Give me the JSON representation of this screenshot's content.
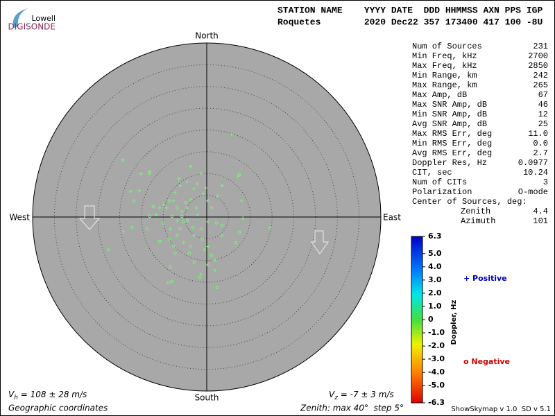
{
  "header": {
    "line1": "STATION NAME    YYYY DATE  DDD HHMMSS AXN PPS IGP",
    "line2": "Roquetes        2020 Dec22 357 173400 417 100 -8U"
  },
  "logo": {
    "top": "Lowell",
    "bottom": "DIGISONDE"
  },
  "stats": {
    "rows": [
      [
        "Num of Sources",
        "231"
      ],
      [
        "Min Freq, kHz",
        "2700"
      ],
      [
        "Max Freq, kHz",
        "2850"
      ],
      [
        "Min Range, km",
        "242"
      ],
      [
        "Max Range, km",
        "265"
      ],
      [
        "Max Amp, dB",
        "67"
      ],
      [
        "Max SNR Amp, dB",
        "46"
      ],
      [
        "Min SNR Amp, dB",
        "12"
      ],
      [
        "Avg SNR Amp, dB",
        "25"
      ],
      [
        "Max RMS Err, deg",
        "11.0"
      ],
      [
        "Min RMS Err, deg",
        "0.0"
      ],
      [
        "Avg RMS Err, deg",
        "2.7"
      ],
      [
        "Doppler Res, Hz",
        "0.0977"
      ],
      [
        "CIT, sec",
        "10.24"
      ],
      [
        "Num of CITs",
        "3"
      ],
      [
        "Polarization",
        "O-mode"
      ]
    ],
    "center_title": "Center of Sources, deg:",
    "center_rows": [
      [
        "Zenith",
        "4.4"
      ],
      [
        "Azimuth",
        "101"
      ]
    ]
  },
  "footer": {
    "vh": {
      "symbol": "V",
      "sub": "h",
      "text": " = 108 ± 28 m/s"
    },
    "vz": {
      "symbol": "V",
      "sub": "z",
      "text": " = -7 ± 3 m/s"
    },
    "coords": "Geographic coordinates",
    "zenith": "Zenith: max 40°  step 5°",
    "version": "ShowSkymap v 1.0  SD v 5.1"
  },
  "chart_data": {
    "type": "skymap",
    "directions": {
      "north": "North",
      "south": "South",
      "west": "West",
      "east": "East"
    },
    "xlim": [
      -40,
      40
    ],
    "ylim": [
      -40,
      40
    ],
    "zenith_step": 5,
    "series": [
      {
        "name": "+ Positive",
        "marker": "plus",
        "color": "#7cf27c",
        "legend_color": "#0000c0",
        "x": [
          5.7,
          -19.3,
          -13.1,
          -15.1,
          -3.7,
          -1.3,
          -17.5,
          -15.4,
          -6.1,
          -4.5,
          -2.2,
          -0.3,
          3.5,
          7.2,
          8.0,
          -0.8,
          -3.7,
          -7.6,
          -9.2,
          -5.7,
          1.1,
          2.5,
          -6.8,
          -9.9,
          -19.1,
          -22.6,
          14.5,
          0.3,
          1.9,
          -1.3,
          -2.9,
          -5.3,
          3.5,
          8.3,
          -8.4,
          -11.6,
          0.3,
          -2.1,
          -4.5,
          -7.3,
          -10.8,
          1.9,
          -0.5,
          -6.4,
          -2.9
        ],
        "values": [
          18.9,
          13.1,
          10.4,
          9.9,
          11.6,
          10.0,
          5.9,
          6.1,
          7.2,
          8.1,
          7.6,
          6.7,
          7.2,
          9.4,
          3.7,
          5.3,
          4.0,
          3.7,
          2.1,
          1.3,
          2.1,
          4.8,
          -0.8,
          2.9,
          -3.3,
          -7.5,
          -2.5,
          -6.8,
          -9.9,
          -13.1,
          -4.3,
          -5.9,
          -4.3,
          -0.3,
          -2.7,
          0.5,
          -1.1,
          0.5,
          2.1,
          5.6,
          2.1,
          -12.3,
          -7.5,
          8.8,
          6.5
        ]
      },
      {
        "name": "o Negative",
        "marker": "circle",
        "color": "#7cf27c",
        "legend_color": "#d00000",
        "x": [
          -13.2,
          -16.7,
          -17.2,
          -13.7,
          -13.1,
          -10.0,
          -8.6,
          -10.8,
          -7.6,
          -8.4,
          -8.8,
          -8.0,
          -4.0,
          -2.9,
          -1.6,
          2.4,
          3.5,
          6.7,
          7.5,
          -5.7,
          -4.5,
          -6.8,
          -6.1,
          -3.2,
          -2.4,
          -8.6,
          0.3,
          2.2,
          -1.0,
          -3.7,
          7.5,
          -12.3,
          -6.8,
          -5.3,
          -1.3,
          -8.0,
          -4.8,
          1.1,
          -7.3,
          0.3
        ],
        "values": [
          10.0,
          3.7,
          -2.4,
          -2.7,
          0.2,
          -1.4,
          -5.1,
          -5.6,
          -6.7,
          -11.5,
          -15.1,
          -14.8,
          -8.3,
          -10.4,
          -13.9,
          -16.2,
          -1.9,
          -5.9,
          -3.5,
          0.2,
          -0.8,
          2.1,
          -2.7,
          -2.4,
          2.1,
          3.7,
          3.7,
          -1.4,
          -5.1,
          -6.7,
          9.7,
          2.4,
          -4.3,
          -1.1,
          -2.7,
          0.2,
          3.3,
          -8.8,
          -8.3,
          -11.0
        ]
      }
    ],
    "colorbar": {
      "label": "Doppler, Hz",
      "lim": [
        -6.3,
        6.3
      ],
      "ticks": [
        6.3,
        {
          "value": 5,
          "label": "5.0"
        },
        {
          "value": 4,
          "label": "4.0"
        },
        {
          "value": 3,
          "label": "3.0"
        },
        {
          "value": 2,
          "label": "2.0"
        },
        {
          "value": 1,
          "label": "1.0"
        },
        0,
        {
          "value": -1,
          "label": "-1.0"
        },
        {
          "value": -2,
          "label": "-2.0"
        },
        {
          "value": -3,
          "label": "-3.0"
        },
        {
          "value": -4,
          "label": "-4.0"
        },
        {
          "value": -5,
          "label": "-5.0"
        },
        -6.3
      ]
    }
  }
}
